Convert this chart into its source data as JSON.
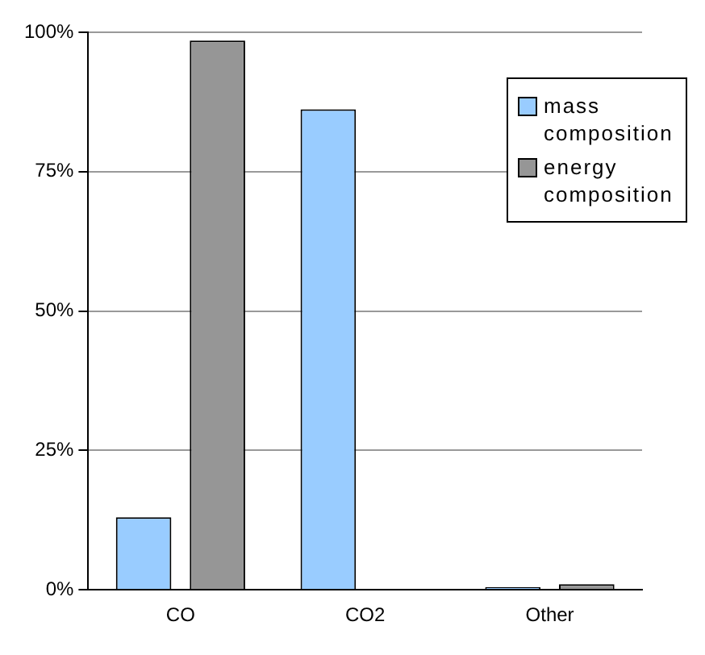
{
  "chart_data": {
    "type": "bar",
    "categories": [
      "CO",
      "CO2",
      "Other"
    ],
    "series": [
      {
        "name": "mass composition",
        "color": "#99ccff",
        "values": [
          13,
          86.2,
          0.5
        ]
      },
      {
        "name": "energy composition",
        "color": "#969696",
        "values": [
          98.5,
          0,
          1
        ]
      }
    ],
    "ylim": [
      0,
      100
    ],
    "yticks": [
      {
        "value": 0,
        "label": "0%"
      },
      {
        "value": 25,
        "label": "25%"
      },
      {
        "value": 50,
        "label": "50%"
      },
      {
        "value": 75,
        "label": "75%"
      },
      {
        "value": 100,
        "label": "100%"
      }
    ],
    "grid": "y",
    "legend": "top right"
  }
}
